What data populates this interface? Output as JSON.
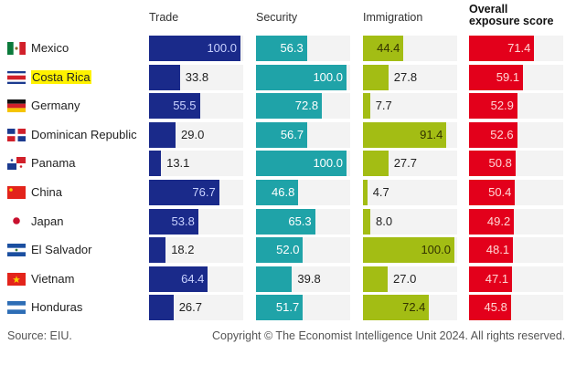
{
  "chart_data": {
    "type": "bar",
    "title": "",
    "columns": [
      "Trade",
      "Security",
      "Immigration",
      "Overall exposure score"
    ],
    "categories": [
      "Mexico",
      "Costa Rica",
      "Germany",
      "Dominican Republic",
      "Panama",
      "China",
      "Japan",
      "El Salvador",
      "Vietnam",
      "Honduras"
    ],
    "highlighted_category": "Costa Rica",
    "series": [
      {
        "name": "Trade",
        "color": "#1a2a8a",
        "values": [
          100.0,
          33.8,
          55.5,
          29.0,
          13.1,
          76.7,
          53.8,
          18.2,
          64.4,
          26.7
        ]
      },
      {
        "name": "Security",
        "color": "#1fa3a8",
        "values": [
          56.3,
          100.0,
          72.8,
          56.7,
          100.0,
          46.8,
          65.3,
          52.0,
          39.8,
          51.7
        ]
      },
      {
        "name": "Immigration",
        "color": "#a3bd14",
        "values": [
          44.4,
          27.8,
          7.7,
          91.4,
          27.7,
          4.7,
          8.0,
          100.0,
          27.0,
          72.4
        ]
      },
      {
        "name": "Overall exposure score",
        "color": "#e3001b",
        "values": [
          71.4,
          59.1,
          52.9,
          52.6,
          50.8,
          50.4,
          49.2,
          48.1,
          47.1,
          45.8
        ]
      }
    ],
    "value_labels": [
      [
        "100.0",
        "33.8",
        "55.5",
        "29.0",
        "13.1",
        "76.7",
        "53.8",
        "18.2",
        "64.4",
        "26.7"
      ],
      [
        "56.3",
        "100.0",
        "72.8",
        "56.7",
        "100.0",
        "46.8",
        "65.3",
        "52.0",
        "39.8",
        "51.7"
      ],
      [
        "44.4",
        "27.8",
        "7.7",
        "91.4",
        "27.7",
        "4.7",
        "8.0",
        "100.0",
        "27.0",
        "72.4"
      ],
      [
        "71.4",
        "59.1",
        "52.9",
        "52.6",
        "50.8",
        "50.4",
        "49.2",
        "48.1",
        "47.1",
        "45.8"
      ]
    ],
    "xlim": [
      0,
      100
    ],
    "grid": false,
    "legend": "none"
  },
  "headers": {
    "trade": "Trade",
    "security": "Security",
    "immigration": "Immigration",
    "overall_line1": "Overall",
    "overall_line2": "exposure score"
  },
  "flags": [
    "flag-mexico",
    "flag-costa-rica",
    "flag-germany",
    "flag-dominican-republic",
    "flag-panama",
    "flag-china",
    "flag-japan",
    "flag-el-salvador",
    "flag-vietnam",
    "flag-honduras"
  ],
  "footer": {
    "source": "Source: EIU.",
    "copyright": "Copyright © The Economist Intelligence Unit 2024. All rights reserved."
  }
}
